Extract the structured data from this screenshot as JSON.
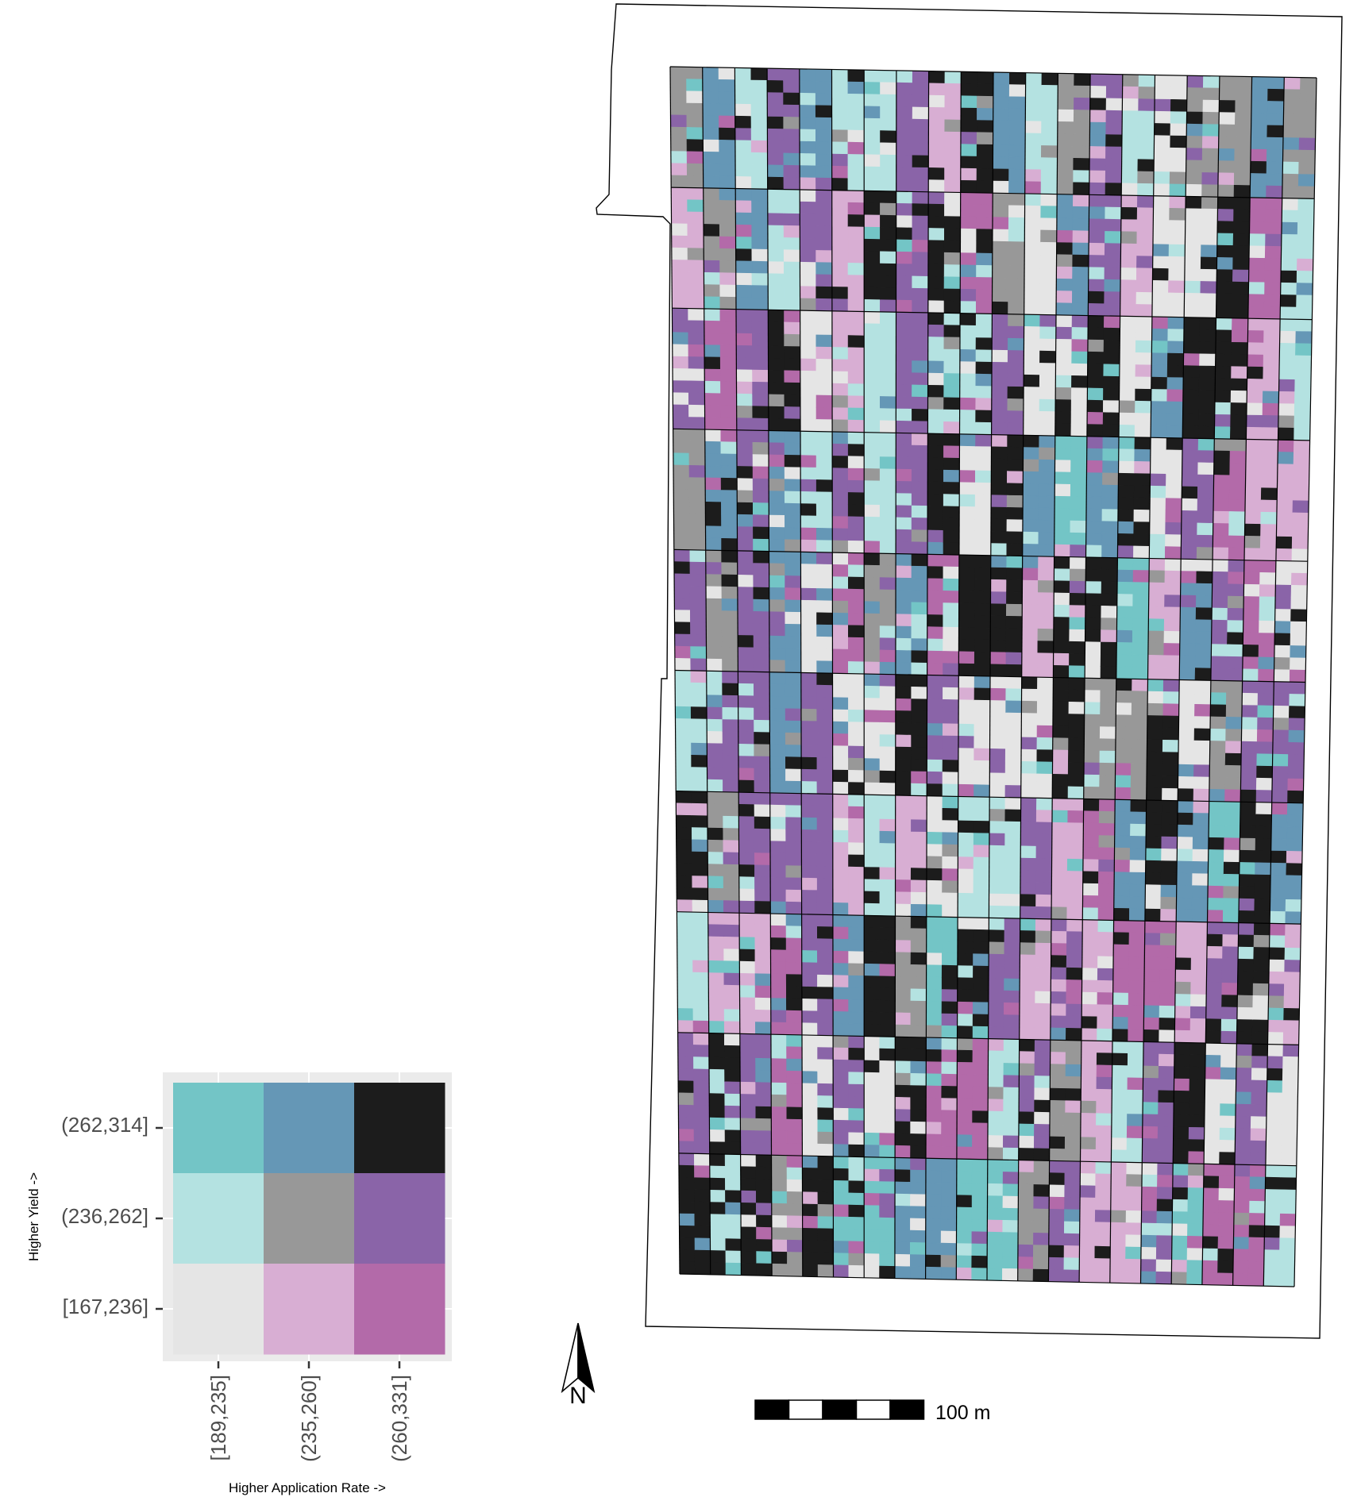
{
  "legend": {
    "y_axis_title": "Higher Yield ->",
    "x_axis_title": "Higher Application Rate ->",
    "y_tick_labels": [
      "(262,314]",
      "(236,262]",
      "[167,236]"
    ],
    "x_tick_labels": [
      "[189,235]",
      "(235,260]",
      "(260,331]"
    ],
    "panel_background": "#ebebeb",
    "grid_color": "#ffffff",
    "color_matrix": [
      [
        "#73c5c6",
        "#6597b6",
        "#1c1c1c"
      ],
      [
        "#b4e2e1",
        "#989898",
        "#8a64a8"
      ],
      [
        "#e5e5e5",
        "#d8aed3",
        "#b36aa9"
      ]
    ]
  },
  "north_arrow": {
    "letter": "N"
  },
  "scale_bar": {
    "label": "100 m"
  },
  "map": {
    "boundary_color": "#000000",
    "strip_count": 20,
    "block_rows": 10
  }
}
